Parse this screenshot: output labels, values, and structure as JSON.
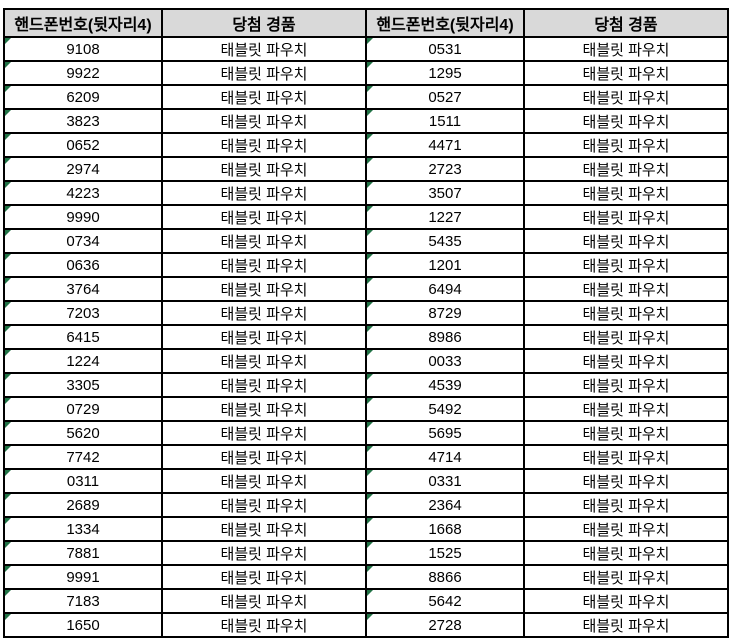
{
  "colors": {
    "header_bg": "#d9d9d9",
    "grid_border": "#000000",
    "stored_as_text_triangle": "#217346"
  },
  "table": {
    "headers": {
      "phone_left": "핸드폰번호(뒷자리4)",
      "prize_left": "당첨 경품",
      "phone_right": "핸드폰번호(뒷자리4)",
      "prize_right": "당첨 경품"
    },
    "rows": [
      {
        "phone_left": "9108",
        "prize_left": "태블릿 파우치",
        "phone_right": "0531",
        "prize_right": "태블릿 파우치"
      },
      {
        "phone_left": "9922",
        "prize_left": "태블릿 파우치",
        "phone_right": "1295",
        "prize_right": "태블릿 파우치"
      },
      {
        "phone_left": "6209",
        "prize_left": "태블릿 파우치",
        "phone_right": "0527",
        "prize_right": "태블릿 파우치"
      },
      {
        "phone_left": "3823",
        "prize_left": "태블릿 파우치",
        "phone_right": "1511",
        "prize_right": "태블릿 파우치"
      },
      {
        "phone_left": "0652",
        "prize_left": "태블릿 파우치",
        "phone_right": "4471",
        "prize_right": "태블릿 파우치"
      },
      {
        "phone_left": "2974",
        "prize_left": "태블릿 파우치",
        "phone_right": "2723",
        "prize_right": "태블릿 파우치"
      },
      {
        "phone_left": "4223",
        "prize_left": "태블릿 파우치",
        "phone_right": "3507",
        "prize_right": "태블릿 파우치"
      },
      {
        "phone_left": "9990",
        "prize_left": "태블릿 파우치",
        "phone_right": "1227",
        "prize_right": "태블릿 파우치"
      },
      {
        "phone_left": "0734",
        "prize_left": "태블릿 파우치",
        "phone_right": "5435",
        "prize_right": "태블릿 파우치"
      },
      {
        "phone_left": "0636",
        "prize_left": "태블릿 파우치",
        "phone_right": "1201",
        "prize_right": "태블릿 파우치"
      },
      {
        "phone_left": "3764",
        "prize_left": "태블릿 파우치",
        "phone_right": "6494",
        "prize_right": "태블릿 파우치"
      },
      {
        "phone_left": "7203",
        "prize_left": "태블릿 파우치",
        "phone_right": "8729",
        "prize_right": "태블릿 파우치"
      },
      {
        "phone_left": "6415",
        "prize_left": "태블릿 파우치",
        "phone_right": "8986",
        "prize_right": "태블릿 파우치"
      },
      {
        "phone_left": "1224",
        "prize_left": "태블릿 파우치",
        "phone_right": "0033",
        "prize_right": "태블릿 파우치"
      },
      {
        "phone_left": "3305",
        "prize_left": "태블릿 파우치",
        "phone_right": "4539",
        "prize_right": "태블릿 파우치"
      },
      {
        "phone_left": "0729",
        "prize_left": "태블릿 파우치",
        "phone_right": "5492",
        "prize_right": "태블릿 파우치"
      },
      {
        "phone_left": "5620",
        "prize_left": "태블릿 파우치",
        "phone_right": "5695",
        "prize_right": "태블릿 파우치"
      },
      {
        "phone_left": "7742",
        "prize_left": "태블릿 파우치",
        "phone_right": "4714",
        "prize_right": "태블릿 파우치"
      },
      {
        "phone_left": "0311",
        "prize_left": "태블릿 파우치",
        "phone_right": "0331",
        "prize_right": "태블릿 파우치"
      },
      {
        "phone_left": "2689",
        "prize_left": "태블릿 파우치",
        "phone_right": "2364",
        "prize_right": "태블릿 파우치"
      },
      {
        "phone_left": "1334",
        "prize_left": "태블릿 파우치",
        "phone_right": "1668",
        "prize_right": "태블릿 파우치"
      },
      {
        "phone_left": "7881",
        "prize_left": "태블릿 파우치",
        "phone_right": "1525",
        "prize_right": "태블릿 파우치"
      },
      {
        "phone_left": "9991",
        "prize_left": "태블릿 파우치",
        "phone_right": "8866",
        "prize_right": "태블릿 파우치"
      },
      {
        "phone_left": "7183",
        "prize_left": "태블릿 파우치",
        "phone_right": "5642",
        "prize_right": "태블릿 파우치"
      },
      {
        "phone_left": "1650",
        "prize_left": "태블릿 파우치",
        "phone_right": "2728",
        "prize_right": "태블릿 파우치"
      }
    ]
  }
}
